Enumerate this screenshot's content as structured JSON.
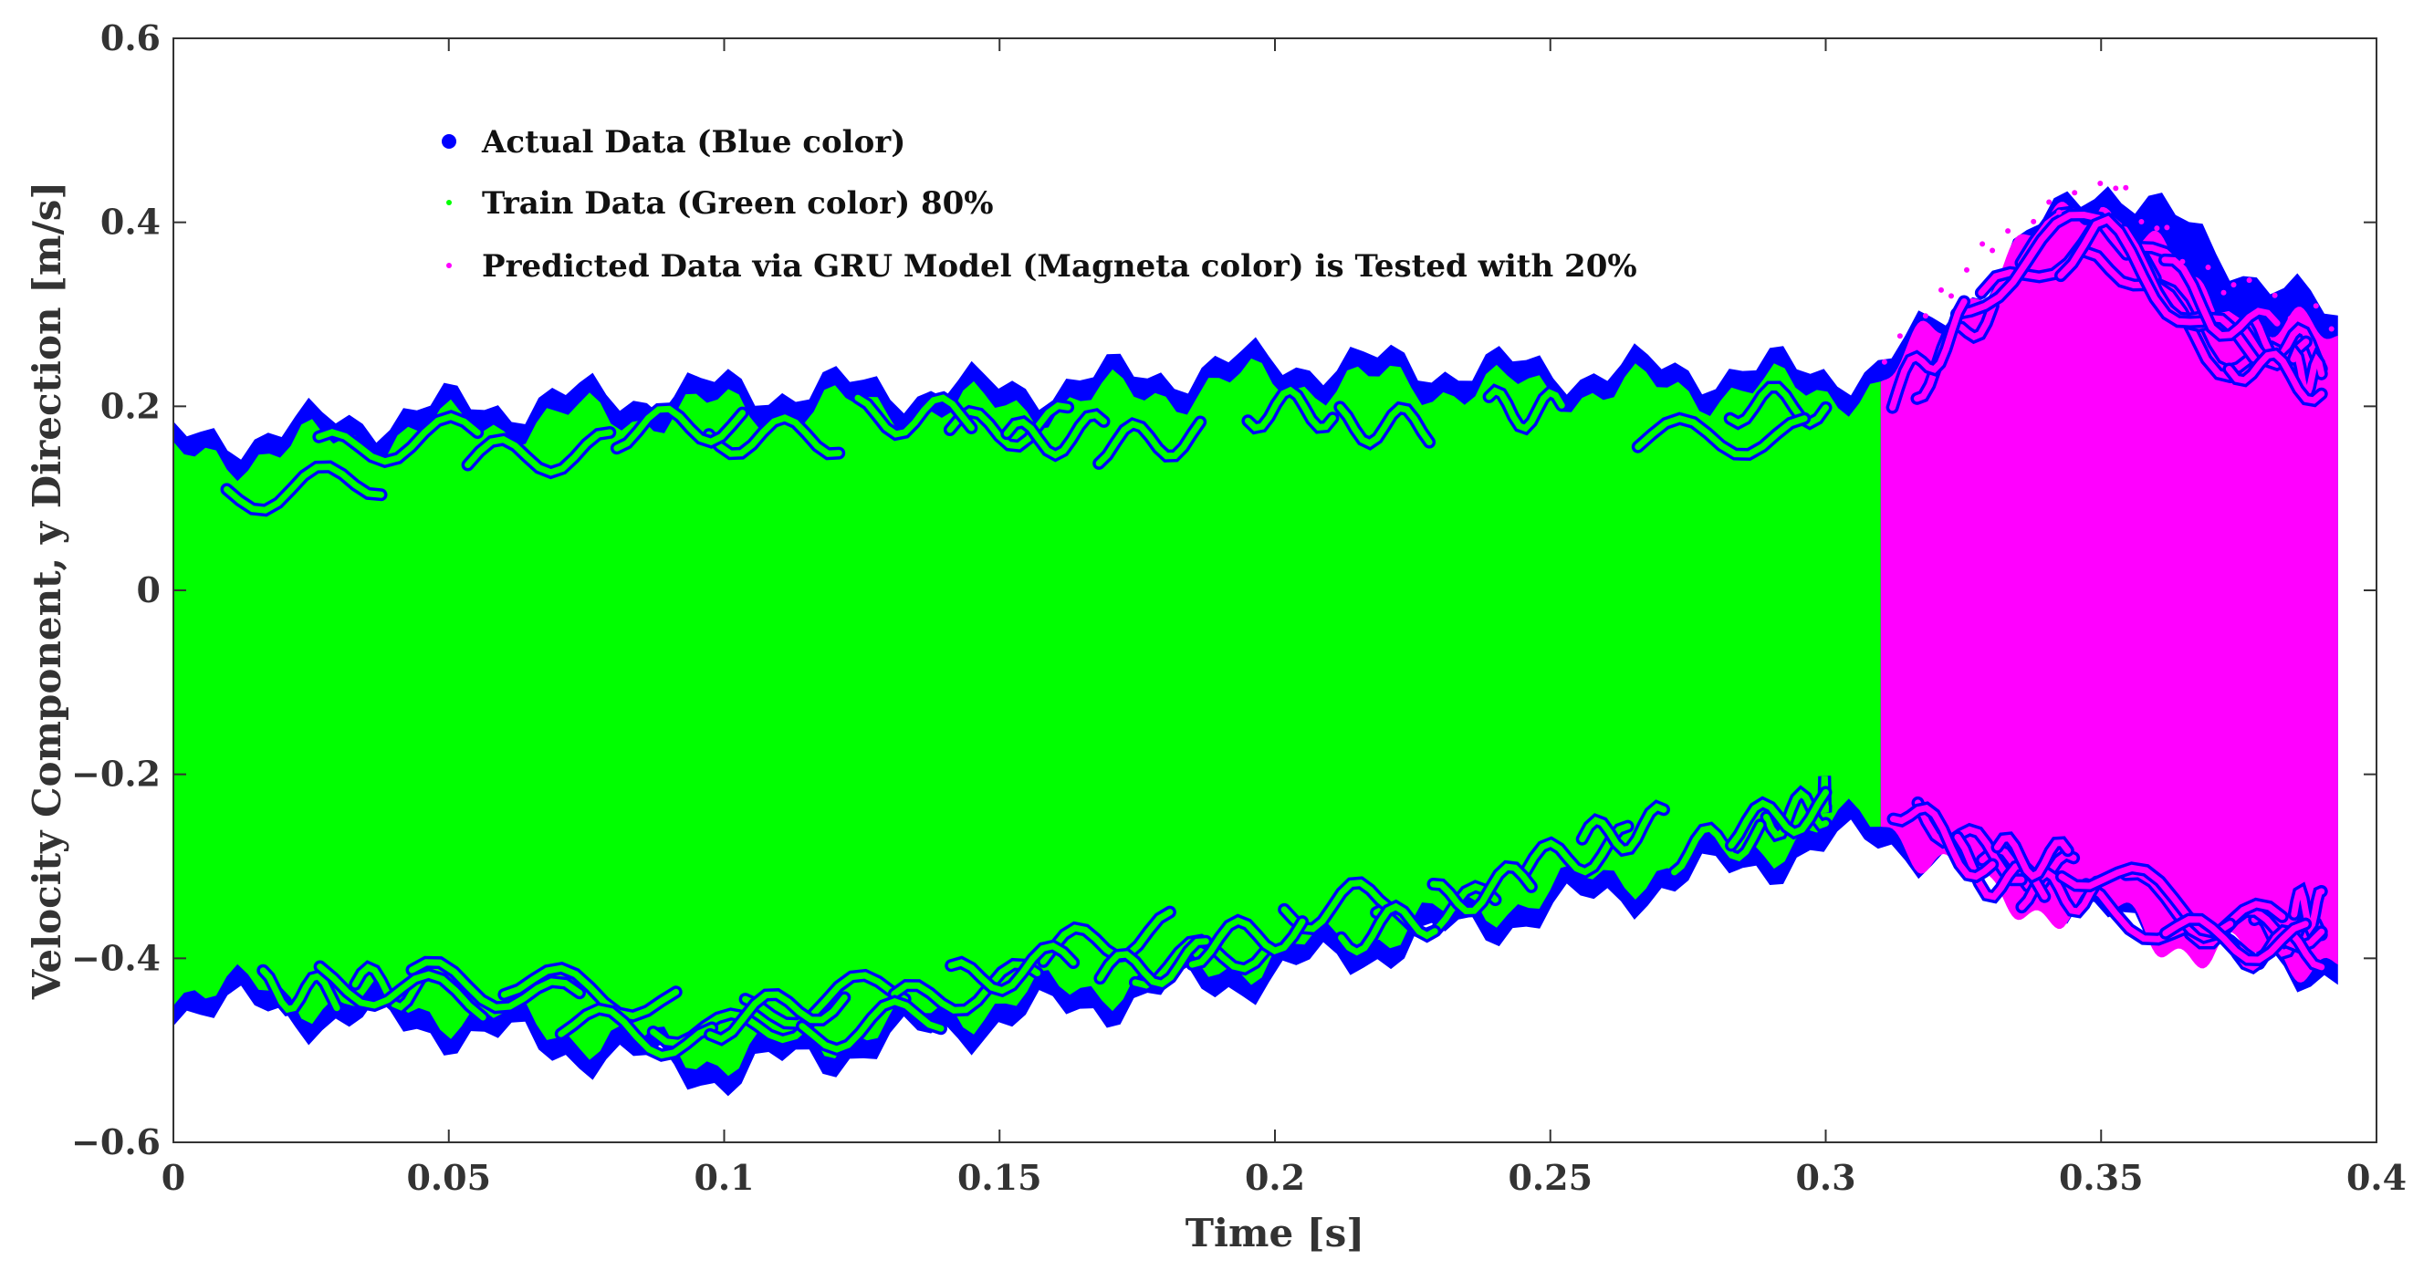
{
  "chart_data": {
    "type": "scatter",
    "title": "",
    "xlabel": "Time [s]",
    "ylabel": "Velocity Component, y Direction [m/s]",
    "xlim": [
      0,
      0.4
    ],
    "ylim": [
      -0.6,
      0.6
    ],
    "x_ticks": [
      0,
      0.05,
      0.1,
      0.15,
      0.2,
      0.25,
      0.3,
      0.35,
      0.4
    ],
    "x_tick_labels": [
      "0",
      "0.05",
      "0.1",
      "0.15",
      "0.2",
      "0.25",
      "0.3",
      "0.35",
      "0.4"
    ],
    "y_ticks": [
      -0.6,
      -0.4,
      -0.2,
      0,
      0.2,
      0.4,
      0.6
    ],
    "y_tick_labels": [
      "−0.6",
      "−0.4",
      "−0.2",
      "0",
      "0.2",
      "0.4",
      "0.6"
    ],
    "grid": false,
    "legend_position": "top-left",
    "split_time": 0.31,
    "series": [
      {
        "name": "Actual Data (Blue color)",
        "color": "#0000ff",
        "marker": "large-dot",
        "x": [
          0,
          0.05,
          0.1,
          0.15,
          0.2,
          0.25,
          0.31,
          0.35,
          0.393
        ],
        "upper": [
          0.16,
          0.2,
          0.22,
          0.22,
          0.25,
          0.24,
          0.24,
          0.45,
          0.29
        ],
        "lower": [
          -0.45,
          -0.48,
          -0.53,
          -0.47,
          -0.42,
          -0.35,
          -0.27,
          -0.36,
          -0.42
        ]
      },
      {
        "name": "Train Data (Green color) 80%",
        "color": "#00ff00",
        "marker": "small-dot",
        "x": [
          0,
          0.05,
          0.1,
          0.15,
          0.2,
          0.25,
          0.31
        ],
        "upper": [
          0.15,
          0.19,
          0.21,
          0.21,
          0.24,
          0.23,
          0.23
        ],
        "lower": [
          -0.44,
          -0.47,
          -0.52,
          -0.46,
          -0.41,
          -0.34,
          -0.26
        ]
      },
      {
        "name": "Predicted Data via GRU Model (Magneta color) is Tested with 20%",
        "color": "#ff00ff",
        "marker": "small-dot",
        "x": [
          0.31,
          0.33,
          0.35,
          0.37,
          0.393
        ],
        "upper": [
          0.23,
          0.36,
          0.44,
          0.32,
          0.28
        ],
        "lower": [
          -0.26,
          -0.35,
          -0.36,
          -0.41,
          -0.41
        ]
      }
    ]
  }
}
